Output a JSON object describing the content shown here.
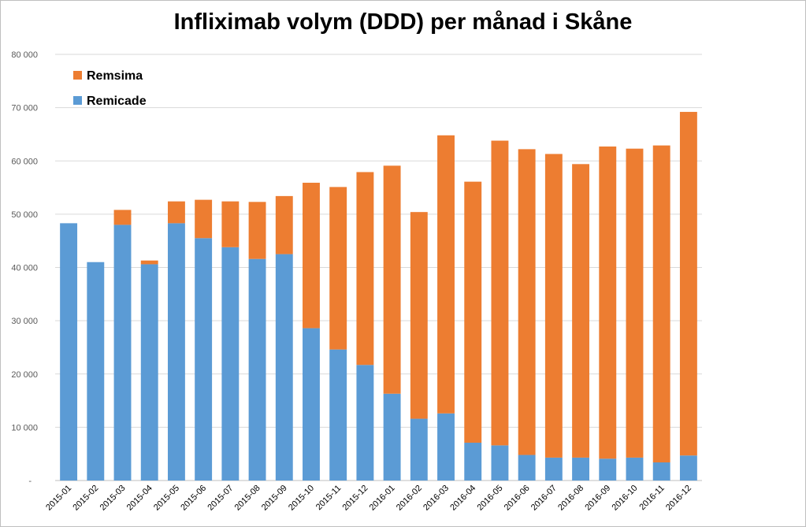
{
  "chart_data": {
    "type": "bar",
    "stacked": true,
    "title": "Infliximab volym (DDD) per månad i Skåne",
    "xlabel": "",
    "ylabel": "",
    "ylim": [
      0,
      80000
    ],
    "y_ticks": [
      "-",
      "10 000",
      "20 000",
      "30 000",
      "40 000",
      "50 000",
      "60 000",
      "70 000",
      "80 000"
    ],
    "grid": true,
    "legend_position": "top-left",
    "categories": [
      "2015-01",
      "2015-02",
      "2015-03",
      "2015-04",
      "2015-05",
      "2015-06",
      "2015-07",
      "2015-08",
      "2015-09",
      "2015-10",
      "2015-11",
      "2015-12",
      "2016-01",
      "2016-02",
      "2016-03",
      "2016-04",
      "2016-05",
      "2016-06",
      "2016-07",
      "2016-08",
      "2016-09",
      "2016-10",
      "2016-11",
      "2016-12"
    ],
    "series": [
      {
        "name": "Remicade",
        "color": "#5b9bd5",
        "values": [
          48300,
          41000,
          48000,
          40600,
          48300,
          45500,
          43800,
          41600,
          42500,
          28600,
          24600,
          21700,
          16300,
          11600,
          12600,
          7100,
          6600,
          4800,
          4300,
          4300,
          4100,
          4300,
          3400,
          4700
        ]
      },
      {
        "name": "Remsima",
        "color": "#ed7d31",
        "values": [
          0,
          0,
          2800,
          700,
          4100,
          7200,
          8600,
          10700,
          10900,
          27300,
          30500,
          36200,
          42800,
          38800,
          52200,
          49000,
          57200,
          57400,
          57000,
          55100,
          58600,
          58000,
          59500,
          64500
        ]
      }
    ]
  }
}
